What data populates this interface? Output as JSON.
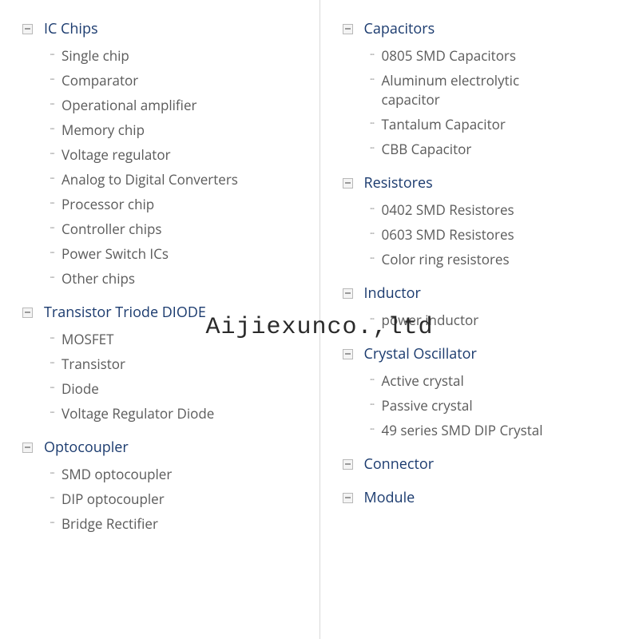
{
  "watermark": "Aijiexunco.,ltd",
  "styling": {
    "page_bg": "#ffffff",
    "divider_color": "#d8d8d8",
    "category_title_color": "#1a3a6e",
    "category_title_fontsize": 18,
    "subitem_color": "#5a5a5a",
    "subitem_fontsize": 17,
    "bullet_color": "#b0b0b0",
    "collapse_icon_border": "#b8b8b8",
    "collapse_icon_bg": "#f4f4f4",
    "watermark_color": "#2a2a2a",
    "watermark_fontsize": 30,
    "font_family": "Segoe UI, Open Sans, Arial, sans-serif",
    "watermark_font_family": "Courier New, monospace"
  },
  "left_column": [
    {
      "title": "IC Chips",
      "items": [
        "Single chip",
        "Comparator",
        "Operational amplifier",
        "Memory chip",
        "Voltage regulator",
        "Analog to Digital Converters",
        "Processor chip",
        "Controller chips",
        "Power Switch ICs",
        "Other chips"
      ]
    },
    {
      "title": "Transistor Triode DIODE",
      "items": [
        "MOSFET",
        "Transistor",
        "Diode",
        "Voltage Regulator Diode"
      ]
    },
    {
      "title": "Optocoupler",
      "items": [
        "SMD optocoupler",
        "DIP optocoupler",
        "Bridge Rectifier"
      ]
    }
  ],
  "right_column": [
    {
      "title": "Capacitors",
      "items": [
        "0805 SMD Capacitors",
        "Aluminum electrolytic capacitor",
        "Tantalum Capacitor",
        "CBB Capacitor"
      ]
    },
    {
      "title": "Resistores",
      "items": [
        "0402 SMD Resistores",
        "0603 SMD Resistores",
        "Color ring resistores"
      ]
    },
    {
      "title": "Inductor",
      "items": [
        "power inductor"
      ]
    },
    {
      "title": "Crystal Oscillator",
      "items": [
        "Active crystal",
        "Passive crystal",
        "49 series SMD DIP Crystal"
      ]
    },
    {
      "title": "Connector",
      "items": []
    },
    {
      "title": "Module",
      "items": []
    }
  ]
}
